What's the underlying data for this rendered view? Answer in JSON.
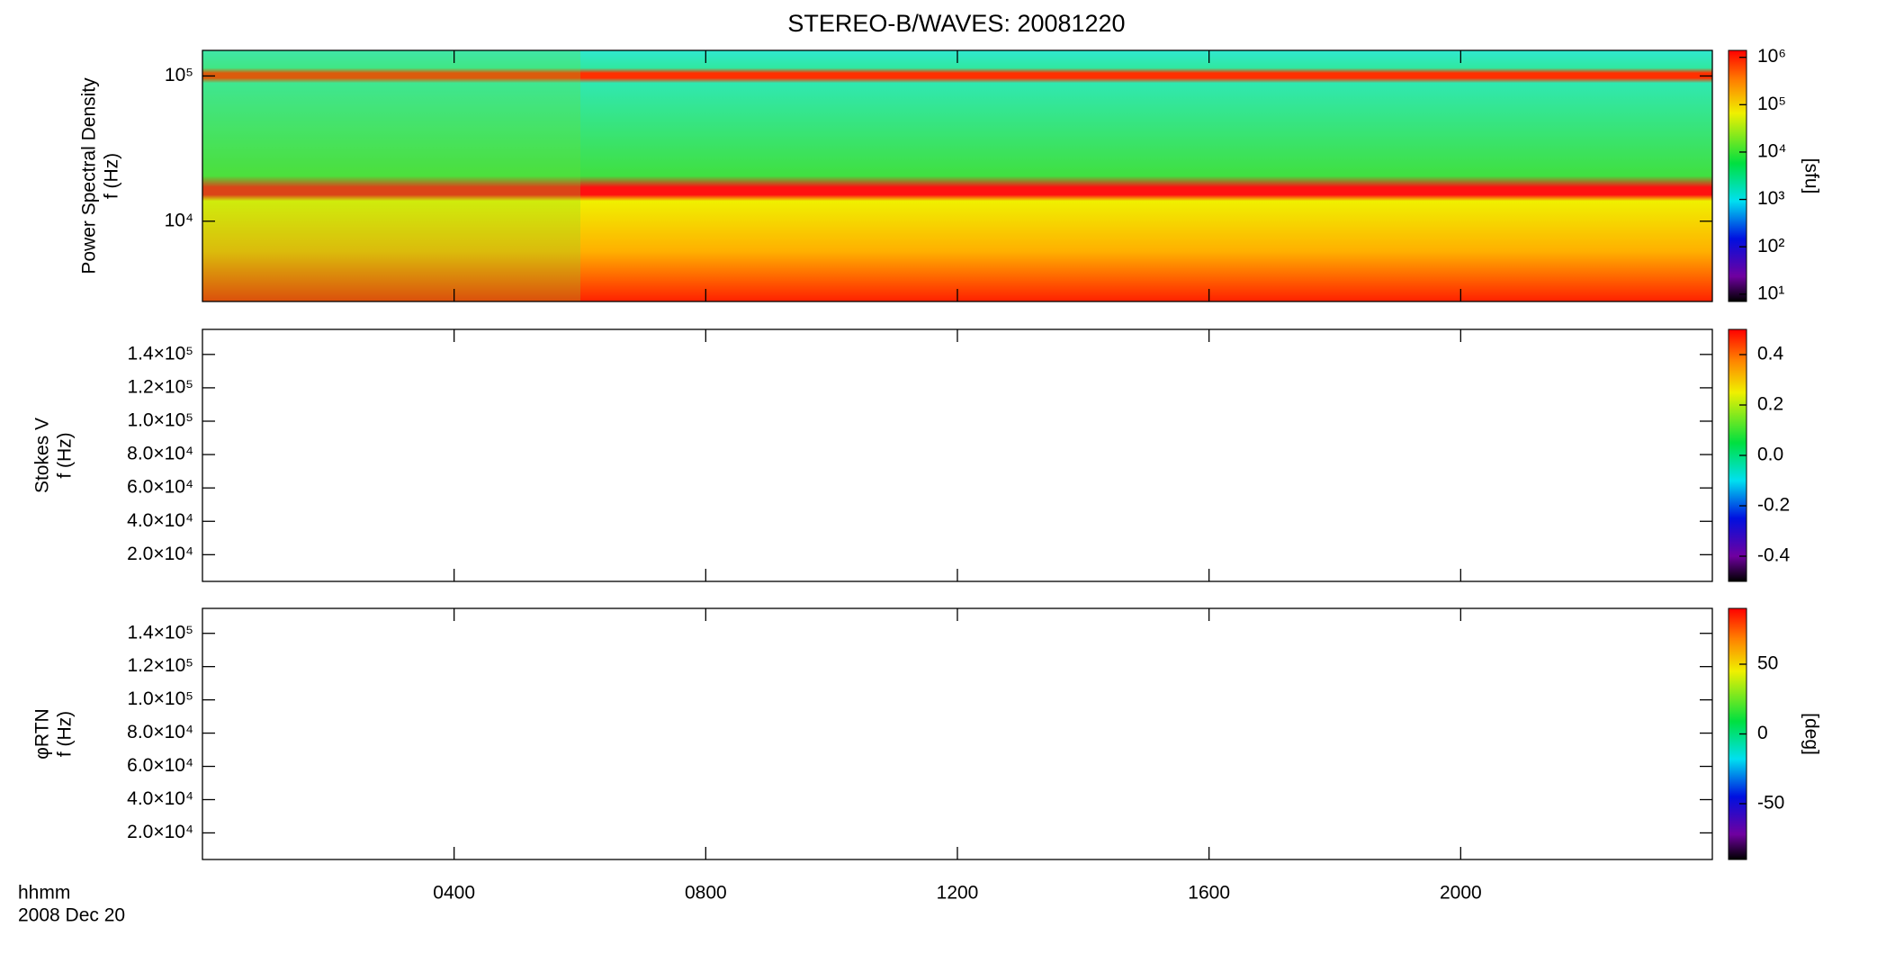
{
  "title": "STEREO-B/WAVES: 20081220",
  "chart_data": [
    {
      "type": "heatmap",
      "ylog": true,
      "ylim": [
        2800,
        150000
      ],
      "yticks": [
        {
          "value": 10000,
          "label": "10⁴"
        },
        {
          "value": 100000,
          "label": "10⁵"
        }
      ],
      "ylabel": [
        "Power Spectral Density",
        "f (Hz)"
      ],
      "clog": true,
      "clim": [
        7,
        1400000
      ],
      "cticks": [
        {
          "value": 10,
          "label": "10¹"
        },
        {
          "value": 100,
          "label": "10²"
        },
        {
          "value": 1000,
          "label": "10³"
        },
        {
          "value": 10000,
          "label": "10⁴"
        },
        {
          "value": 100000,
          "label": "10⁵"
        },
        {
          "value": 1000000,
          "label": "10⁶"
        }
      ],
      "clabel": "[sfu]"
    },
    {
      "type": "heatmap",
      "ylog": false,
      "ylim": [
        4000,
        155000
      ],
      "yticks": [
        {
          "value": 20000,
          "label": "2.0×10⁴"
        },
        {
          "value": 40000,
          "label": "4.0×10⁴"
        },
        {
          "value": 60000,
          "label": "6.0×10⁴"
        },
        {
          "value": 80000,
          "label": "8.0×10⁴"
        },
        {
          "value": 100000,
          "label": "1.0×10⁵"
        },
        {
          "value": 120000,
          "label": "1.2×10⁵"
        },
        {
          "value": 140000,
          "label": "1.4×10⁵"
        }
      ],
      "ylabel": [
        "Stokes V",
        "f (Hz)"
      ],
      "clog": false,
      "clim": [
        -0.5,
        0.5
      ],
      "cticks": [
        -0.4,
        -0.2,
        {
          "value": 0,
          "label": "0.0"
        },
        0.2,
        0.4
      ]
    },
    {
      "type": "heatmap",
      "ylog": false,
      "ylim": [
        4000,
        155000
      ],
      "yticks": [
        {
          "value": 20000,
          "label": "2.0×10⁴"
        },
        {
          "value": 40000,
          "label": "4.0×10⁴"
        },
        {
          "value": 60000,
          "label": "6.0×10⁴"
        },
        {
          "value": 80000,
          "label": "8.0×10⁴"
        },
        {
          "value": 100000,
          "label": "1.0×10⁵"
        },
        {
          "value": 120000,
          "label": "1.2×10⁵"
        },
        {
          "value": 140000,
          "label": "1.4×10⁵"
        }
      ],
      "ylabel": [
        "φRTN",
        "f (Hz)"
      ],
      "clog": false,
      "clim": [
        -90,
        90
      ],
      "cticks": [
        -50,
        0,
        50
      ],
      "clabel": "[deg]",
      "xlim": [
        0,
        24
      ],
      "xticks": [
        {
          "value": 4,
          "label": "0400"
        },
        {
          "value": 8,
          "label": "0800"
        },
        {
          "value": 12,
          "label": "1200"
        },
        {
          "value": 16,
          "label": "1600"
        },
        {
          "value": 20,
          "label": "2000"
        }
      ],
      "xlabel": [
        "hhmm",
        "2008 Dec 20"
      ]
    }
  ]
}
